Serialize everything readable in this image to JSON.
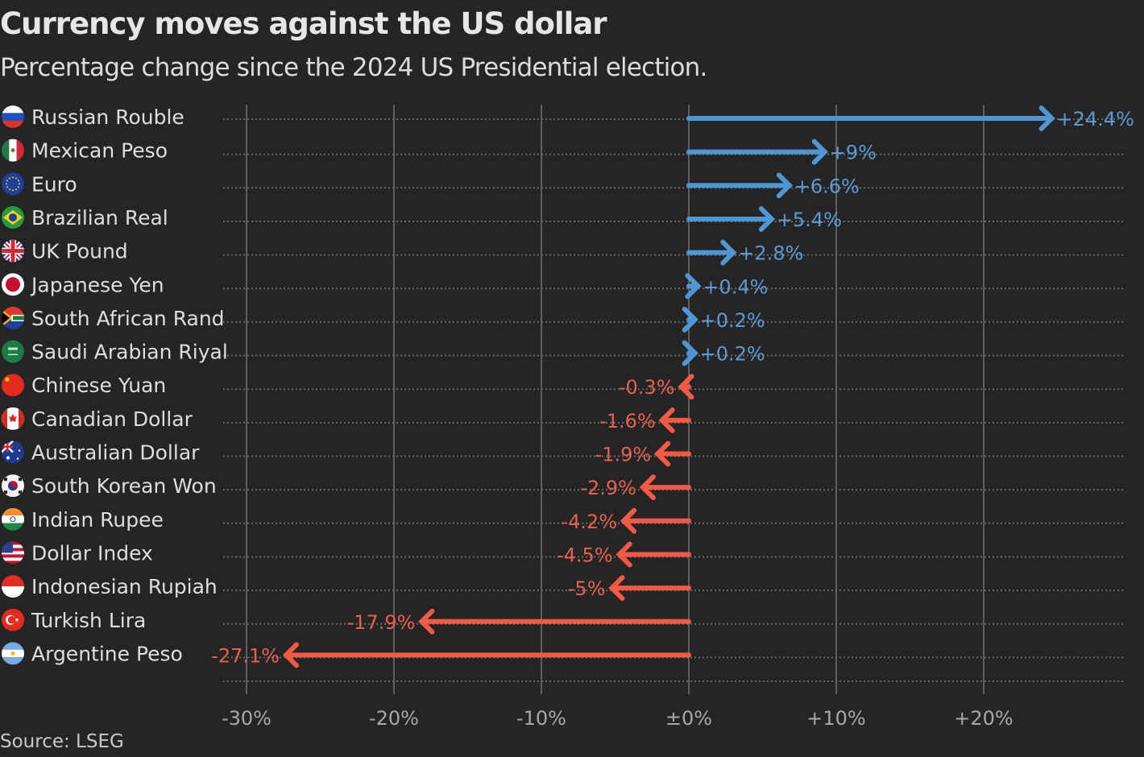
{
  "title": "Currency moves against the US dollar",
  "subtitle": "Percentage change since the 2024 US Presidential election.",
  "source": "Source: LSEG",
  "colors": {
    "background": "#252525",
    "positive": "#4f97d4",
    "negative": "#f25a47",
    "positive_label": "#5b9bd5",
    "negative_label": "#e8604d",
    "grid": "#5e5e5e",
    "row_rule": "#6a6a6a"
  },
  "chart_data": {
    "type": "bar",
    "orientation": "horizontal",
    "mark": "arrow",
    "title": "Currency moves against the US dollar",
    "subtitle": "Percentage change since the 2024 US Presidential election.",
    "xlabel": "",
    "ylabel": "",
    "xlim": [
      -30,
      25
    ],
    "x_ticks": [
      -30,
      -20,
      -10,
      0,
      10,
      20
    ],
    "x_tick_labels": [
      "-30%",
      "-20%",
      "-10%",
      "±0%",
      "+10%",
      "+20%"
    ],
    "grid": true,
    "categories": [
      {
        "name": "Russian Rouble",
        "flag": "russia-flag-icon",
        "value": 24.4,
        "label": "+24.4%"
      },
      {
        "name": "Mexican Peso",
        "flag": "mexico-flag-icon",
        "value": 9,
        "label": "+9%"
      },
      {
        "name": "Euro",
        "flag": "eu-flag-icon",
        "value": 6.6,
        "label": "+6.6%"
      },
      {
        "name": "Brazilian Real",
        "flag": "brazil-flag-icon",
        "value": 5.4,
        "label": "+5.4%"
      },
      {
        "name": "UK Pound",
        "flag": "uk-flag-icon",
        "value": 2.8,
        "label": "+2.8%"
      },
      {
        "name": "Japanese Yen",
        "flag": "japan-flag-icon",
        "value": 0.4,
        "label": "+0.4%"
      },
      {
        "name": "South African Rand",
        "flag": "south-africa-flag-icon",
        "value": 0.2,
        "label": "+0.2%"
      },
      {
        "name": "Saudi Arabian Riyal",
        "flag": "saudi-arabia-flag-icon",
        "value": 0.2,
        "label": "+0.2%"
      },
      {
        "name": "Chinese Yuan",
        "flag": "china-flag-icon",
        "value": -0.3,
        "label": "-0.3%"
      },
      {
        "name": "Canadian Dollar",
        "flag": "canada-flag-icon",
        "value": -1.6,
        "label": "-1.6%"
      },
      {
        "name": "Australian Dollar",
        "flag": "australia-flag-icon",
        "value": -1.9,
        "label": "-1.9%"
      },
      {
        "name": "South Korean Won",
        "flag": "south-korea-flag-icon",
        "value": -2.9,
        "label": "-2.9%"
      },
      {
        "name": "Indian Rupee",
        "flag": "india-flag-icon",
        "value": -4.2,
        "label": "-4.2%"
      },
      {
        "name": "Dollar Index",
        "flag": "usa-flag-icon",
        "value": -4.5,
        "label": "-4.5%"
      },
      {
        "name": "Indonesian Rupiah",
        "flag": "indonesia-flag-icon",
        "value": -5,
        "label": "-5%"
      },
      {
        "name": "Turkish Lira",
        "flag": "turkey-flag-icon",
        "value": -17.9,
        "label": "-17.9%"
      },
      {
        "name": "Argentine Peso",
        "flag": "argentina-flag-icon",
        "value": -27.1,
        "label": "-27.1%"
      }
    ]
  }
}
